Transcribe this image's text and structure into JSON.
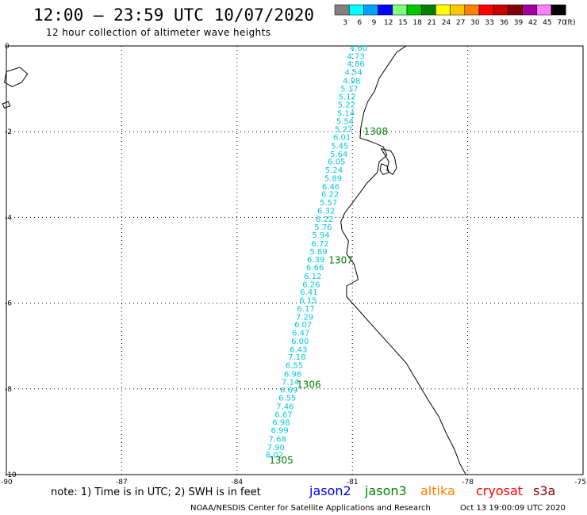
{
  "header": {
    "title": "12:00 – 23:59 UTC 10/07/2020",
    "subtitle": "12 hour collection of altimeter wave heights"
  },
  "color_scale": {
    "unit": "(ft)",
    "bins": [
      {
        "label": "3",
        "color": "#808080"
      },
      {
        "label": "6",
        "color": "#00ffff"
      },
      {
        "label": "9",
        "color": "#00a0ff"
      },
      {
        "label": "12",
        "color": "#0000ff"
      },
      {
        "label": "15",
        "color": "#80ff80"
      },
      {
        "label": "18",
        "color": "#00c800"
      },
      {
        "label": "21",
        "color": "#008000"
      },
      {
        "label": "24",
        "color": "#ffff00"
      },
      {
        "label": "27",
        "color": "#ffc800"
      },
      {
        "label": "30",
        "color": "#ff8000"
      },
      {
        "label": "33",
        "color": "#ff0000"
      },
      {
        "label": "36",
        "color": "#c80000"
      },
      {
        "label": "39",
        "color": "#800000"
      },
      {
        "label": "42",
        "color": "#a000a0"
      },
      {
        "label": "45",
        "color": "#ff80ff"
      },
      {
        "label": "70",
        "color": "#000000"
      }
    ]
  },
  "map": {
    "lon_range": [
      -90,
      -75
    ],
    "lat_range": [
      -10,
      0
    ],
    "x_ticks": [
      {
        "value": -90,
        "label": "-90"
      },
      {
        "value": -87,
        "label": "-87"
      },
      {
        "value": -84,
        "label": "-84"
      },
      {
        "value": -81,
        "label": "-81"
      },
      {
        "value": -78,
        "label": "-78"
      },
      {
        "value": -75,
        "label": "-75"
      }
    ],
    "y_ticks": [
      {
        "value": 0,
        "label": "0"
      },
      {
        "value": -2,
        "label": "-2"
      },
      {
        "value": -4,
        "label": "-4"
      },
      {
        "value": -6,
        "label": "-6"
      },
      {
        "value": -8,
        "label": "-8"
      },
      {
        "value": -10,
        "label": "-10"
      }
    ],
    "grid": "dotted",
    "swh_color": "#00c8dc",
    "time_color": "#008000",
    "swh_track": [
      {
        "lat": -0.04,
        "lon": -80.84,
        "value": "4.60"
      },
      {
        "lat": -0.23,
        "lon": -80.91,
        "value": "4.73"
      },
      {
        "lat": -0.41,
        "lon": -80.91,
        "value": "4.86"
      },
      {
        "lat": -0.6,
        "lon": -80.97,
        "value": "4.54"
      },
      {
        "lat": -0.8,
        "lon": -81.02,
        "value": "4.98"
      },
      {
        "lat": -0.99,
        "lon": -81.08,
        "value": "5.17"
      },
      {
        "lat": -1.17,
        "lon": -81.13,
        "value": "5.12"
      },
      {
        "lat": -1.36,
        "lon": -81.15,
        "value": "5.22"
      },
      {
        "lat": -1.56,
        "lon": -81.17,
        "value": "5.14"
      },
      {
        "lat": -1.75,
        "lon": -81.19,
        "value": "5.54"
      },
      {
        "lat": -1.93,
        "lon": -81.23,
        "value": "5.27"
      },
      {
        "lat": -2.12,
        "lon": -81.27,
        "value": "6.01"
      },
      {
        "lat": -2.32,
        "lon": -81.33,
        "value": "5.45"
      },
      {
        "lat": -2.51,
        "lon": -81.35,
        "value": "5.64"
      },
      {
        "lat": -2.69,
        "lon": -81.41,
        "value": "6.05"
      },
      {
        "lat": -2.88,
        "lon": -81.48,
        "value": "5.24"
      },
      {
        "lat": -3.08,
        "lon": -81.5,
        "value": "5.89"
      },
      {
        "lat": -3.27,
        "lon": -81.56,
        "value": "6.46"
      },
      {
        "lat": -3.45,
        "lon": -81.58,
        "value": "6.22"
      },
      {
        "lat": -3.64,
        "lon": -81.62,
        "value": "5.57"
      },
      {
        "lat": -3.84,
        "lon": -81.68,
        "value": "6.32"
      },
      {
        "lat": -4.03,
        "lon": -81.72,
        "value": "6.22"
      },
      {
        "lat": -4.21,
        "lon": -81.76,
        "value": "5.76"
      },
      {
        "lat": -4.4,
        "lon": -81.82,
        "value": "5.94"
      },
      {
        "lat": -4.6,
        "lon": -81.84,
        "value": "6.72"
      },
      {
        "lat": -4.79,
        "lon": -81.88,
        "value": "5.89"
      },
      {
        "lat": -4.97,
        "lon": -81.95,
        "value": "6.39"
      },
      {
        "lat": -5.16,
        "lon": -81.97,
        "value": "6.66"
      },
      {
        "lat": -5.36,
        "lon": -82.03,
        "value": "6.12"
      },
      {
        "lat": -5.55,
        "lon": -82.07,
        "value": "6.26"
      },
      {
        "lat": -5.73,
        "lon": -82.13,
        "value": "6.41"
      },
      {
        "lat": -5.92,
        "lon": -82.15,
        "value": "6.15"
      },
      {
        "lat": -6.12,
        "lon": -82.21,
        "value": "6.17"
      },
      {
        "lat": -6.31,
        "lon": -82.24,
        "value": "7.29"
      },
      {
        "lat": -6.49,
        "lon": -82.28,
        "value": "6.07"
      },
      {
        "lat": -6.68,
        "lon": -82.34,
        "value": "6.47"
      },
      {
        "lat": -6.88,
        "lon": -82.36,
        "value": "6.00"
      },
      {
        "lat": -7.07,
        "lon": -82.4,
        "value": "6.43"
      },
      {
        "lat": -7.25,
        "lon": -82.44,
        "value": "7.18"
      },
      {
        "lat": -7.44,
        "lon": -82.51,
        "value": "6.55"
      },
      {
        "lat": -7.64,
        "lon": -82.55,
        "value": "6.96"
      },
      {
        "lat": -7.83,
        "lon": -82.61,
        "value": "7.14"
      },
      {
        "lat": -8.01,
        "lon": -82.65,
        "value": "6.69"
      },
      {
        "lat": -8.2,
        "lon": -82.69,
        "value": "6.55"
      },
      {
        "lat": -8.4,
        "lon": -82.75,
        "value": "7.46"
      },
      {
        "lat": -8.59,
        "lon": -82.79,
        "value": "6.67"
      },
      {
        "lat": -8.77,
        "lon": -82.85,
        "value": "6.98"
      },
      {
        "lat": -8.96,
        "lon": -82.89,
        "value": "6.99"
      },
      {
        "lat": -9.16,
        "lon": -82.95,
        "value": "7.68"
      },
      {
        "lat": -9.35,
        "lon": -82.99,
        "value": "7.90"
      },
      {
        "lat": -9.53,
        "lon": -83.03,
        "value": "8.02"
      }
    ],
    "time_labels": [
      {
        "lat": -2.0,
        "lon": -80.39,
        "value": "1308"
      },
      {
        "lat": -5.0,
        "lon": -81.3,
        "value": "1307"
      },
      {
        "lat": -7.9,
        "lon": -82.13,
        "value": "1306"
      },
      {
        "lat": -9.67,
        "lon": -82.85,
        "value": "1305"
      }
    ],
    "coastline": [
      [
        -79.6,
        0.0
      ],
      [
        -79.85,
        -0.15
      ],
      [
        -80.05,
        -0.42
      ],
      [
        -80.3,
        -0.75
      ],
      [
        -80.42,
        -1.05
      ],
      [
        -80.6,
        -1.3
      ],
      [
        -80.7,
        -1.55
      ],
      [
        -80.78,
        -1.9
      ],
      [
        -80.8,
        -2.15
      ],
      [
        -80.55,
        -2.22
      ],
      [
        -80.2,
        -2.35
      ],
      [
        -80.1,
        -2.55
      ],
      [
        -80.3,
        -2.7
      ],
      [
        -80.35,
        -2.95
      ],
      [
        -80.62,
        -3.2
      ],
      [
        -80.82,
        -3.45
      ],
      [
        -81.2,
        -3.9
      ],
      [
        -81.3,
        -4.1
      ],
      [
        -81.27,
        -4.3
      ],
      [
        -81.1,
        -4.55
      ],
      [
        -81.15,
        -4.85
      ],
      [
        -80.95,
        -5.1
      ],
      [
        -80.85,
        -5.45
      ],
      [
        -81.15,
        -5.6
      ],
      [
        -81.15,
        -5.85
      ],
      [
        -80.9,
        -6.1
      ],
      [
        -80.5,
        -6.5
      ],
      [
        -80.0,
        -7.0
      ],
      [
        -79.6,
        -7.4
      ],
      [
        -79.3,
        -7.85
      ],
      [
        -79.0,
        -8.3
      ],
      [
        -78.75,
        -8.65
      ],
      [
        -78.55,
        -9.05
      ],
      [
        -78.35,
        -9.4
      ],
      [
        -78.2,
        -9.75
      ],
      [
        -78.05,
        -10.0
      ]
    ],
    "estuary": [
      [
        -80.25,
        -2.4
      ],
      [
        -80.0,
        -2.45
      ],
      [
        -79.9,
        -2.6
      ],
      [
        -79.85,
        -2.85
      ],
      [
        -79.95,
        -3.0
      ],
      [
        -80.1,
        -2.9
      ],
      [
        -80.05,
        -2.7
      ],
      [
        -80.15,
        -2.55
      ],
      [
        -80.25,
        -2.4
      ]
    ],
    "puna_island": [
      [
        -80.25,
        -2.75
      ],
      [
        -80.1,
        -2.8
      ],
      [
        -80.05,
        -2.95
      ],
      [
        -80.2,
        -3.0
      ],
      [
        -80.28,
        -2.9
      ],
      [
        -80.25,
        -2.75
      ]
    ],
    "galapagos": [
      [
        [
          -90.0,
          -0.6
        ],
        [
          -89.65,
          -0.5
        ],
        [
          -89.45,
          -0.65
        ],
        [
          -89.6,
          -0.85
        ],
        [
          -89.85,
          -0.95
        ],
        [
          -90.05,
          -0.85
        ],
        [
          -90.0,
          -0.6
        ]
      ],
      [
        [
          -90.1,
          -1.35
        ],
        [
          -89.95,
          -1.3
        ],
        [
          -89.9,
          -1.4
        ],
        [
          -90.05,
          -1.45
        ],
        [
          -90.1,
          -1.35
        ]
      ]
    ]
  },
  "footer": {
    "note": "note: 1) Time is in UTC; 2) SWH is in feet",
    "satellites": [
      {
        "name": "jason2",
        "color": "#0000ff"
      },
      {
        "name": "jason3",
        "color": "#008000"
      },
      {
        "name": "altika",
        "color": "#ff8000"
      },
      {
        "name": "cryosat",
        "color": "#ff0000"
      },
      {
        "name": "s3a",
        "color": "#800000"
      }
    ],
    "credit": "NOAA/NESDIS Center for Satellite Applications and Research",
    "timestamp": "Oct 13 19:00:09 UTC 2020"
  }
}
